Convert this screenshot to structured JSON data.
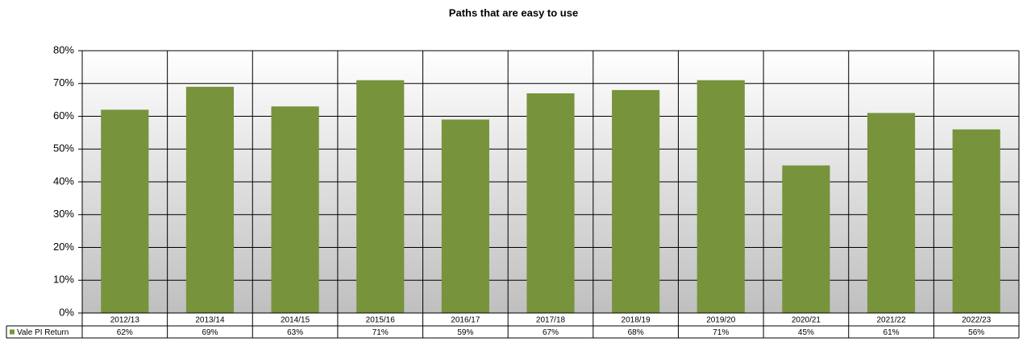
{
  "chart_data": {
    "type": "bar",
    "title": "Paths that are easy to use",
    "categories": [
      "2012/13",
      "2013/14",
      "2014/15",
      "2015/16",
      "2016/17",
      "2017/18",
      "2018/19",
      "2019/20",
      "2020/21",
      "2021/22",
      "2022/23"
    ],
    "series": [
      {
        "name": "Vale PI Return",
        "color": "#77933c",
        "values": [
          62,
          69,
          63,
          71,
          59,
          67,
          68,
          71,
          45,
          61,
          56
        ],
        "value_labels": [
          "62%",
          "69%",
          "63%",
          "71%",
          "59%",
          "67%",
          "68%",
          "71%",
          "45%",
          "61%",
          "56%"
        ]
      }
    ],
    "ylim": [
      0,
      80
    ],
    "yticks": [
      {
        "value": 0,
        "label": "0%"
      },
      {
        "value": 10,
        "label": "10%"
      },
      {
        "value": 20,
        "label": "20%"
      },
      {
        "value": 30,
        "label": "30%"
      },
      {
        "value": 40,
        "label": "40%"
      },
      {
        "value": 50,
        "label": "50%"
      },
      {
        "value": 60,
        "label": "60%"
      },
      {
        "value": 70,
        "label": "70%"
      },
      {
        "value": 80,
        "label": "80%"
      }
    ],
    "grid": true
  }
}
